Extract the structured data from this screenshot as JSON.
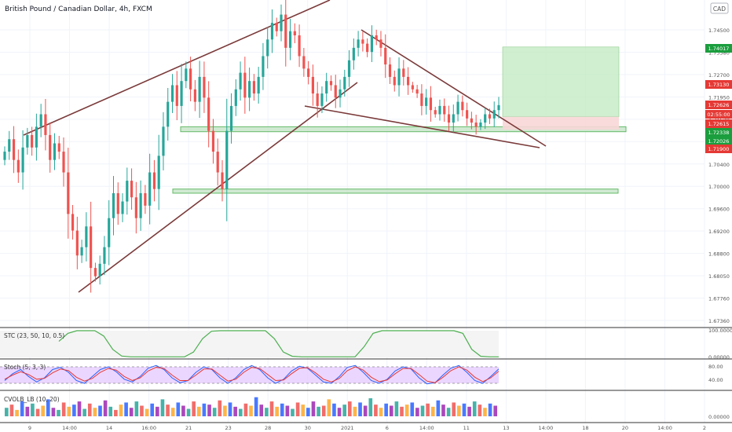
{
  "title": "British Pound / Canadian Dollar, 4h, FXCM",
  "currency_badge": "CAD",
  "price_axis_ticks": [
    "1.74500",
    "1.73580",
    "1.72700",
    "1.71950",
    "1.71520",
    "1.70800",
    "1.70400",
    "1.70000",
    "1.69600",
    "1.69200",
    "1.68800",
    "1.68050",
    "1.67760",
    "1.67360"
  ],
  "time_axis_ticks": [
    "9",
    "14:00",
    "14",
    "16:00",
    "21",
    "23",
    "28",
    "30",
    "2021",
    "6",
    "14:00",
    "11",
    "13",
    "14:00",
    "18",
    "20",
    "14:00",
    "2"
  ],
  "price_labels": [
    {
      "value": "1.74017",
      "color": "#1b9e3e"
    },
    {
      "value": "1.73130",
      "color": "#e53935"
    },
    {
      "value": "1.72626",
      "color": "#e53935"
    },
    {
      "value": "02:55:00",
      "color": "#e53935"
    },
    {
      "value": "1.72615",
      "color": "#e53935"
    },
    {
      "value": "1.72338",
      "color": "#1b9e3e"
    },
    {
      "value": "1.72026",
      "color": "#1b9e3e"
    },
    {
      "value": "1.71900",
      "color": "#e53935"
    }
  ],
  "stc_panel": {
    "label": "STC (23, 50, 10, 0.5)",
    "axis_ticks": [
      "100.00000",
      "0.00000"
    ]
  },
  "stoch_panel": {
    "label": "Stoch (5, 3, 3)",
    "axis_ticks": [
      "80.00",
      "40.00"
    ]
  },
  "cvol_panel": {
    "label": "CVOLB_LB (10, 20)",
    "axis_ticks": [
      "0.00000"
    ]
  },
  "colors": {
    "up": "#26a69a",
    "down": "#ef5350",
    "trendline": "#7b3a3a",
    "zone_fill": "#c8e6c9",
    "zone_stroke": "#4caf50",
    "long_target": "#c8ecc8",
    "long_stop": "#f8d7d7",
    "stoch_band": "#e6ccff",
    "stc_line": "#4caf50",
    "stc_line_down": "#e53935",
    "stoch_k": "#2962ff",
    "stoch_d": "#e53935"
  },
  "chart_data": [
    {
      "type": "candlestick",
      "title": "British Pound / Canadian Dollar, 4h, FXCM",
      "ylim": [
        1.6736,
        1.75
      ],
      "x_start_label": "9",
      "x_end_label": "2",
      "closes": [
        1.715,
        1.718,
        1.713,
        1.71,
        1.716,
        1.719,
        1.716,
        1.721,
        1.724,
        1.719,
        1.713,
        1.717,
        1.715,
        1.71,
        1.7,
        1.696,
        1.69,
        1.692,
        1.697,
        1.687,
        1.685,
        1.688,
        1.692,
        1.699,
        1.705,
        1.7,
        1.703,
        1.708,
        1.704,
        1.699,
        1.705,
        1.702,
        1.71,
        1.706,
        1.714,
        1.721,
        1.727,
        1.731,
        1.726,
        1.732,
        1.735,
        1.73,
        1.727,
        1.733,
        1.728,
        1.72,
        1.715,
        1.71,
        1.706,
        1.72,
        1.726,
        1.73,
        1.734,
        1.728,
        1.732,
        1.729,
        1.733,
        1.738,
        1.742,
        1.746,
        1.744,
        1.748,
        1.74,
        1.744,
        1.743,
        1.738,
        1.735,
        1.733,
        1.729,
        1.726,
        1.729,
        1.732,
        1.731,
        1.728,
        1.73,
        1.733,
        1.737,
        1.74,
        1.742,
        1.741,
        1.739,
        1.743,
        1.742,
        1.74,
        1.736,
        1.733,
        1.731,
        1.735,
        1.733,
        1.731,
        1.73,
        1.729,
        1.726,
        1.728,
        1.725,
        1.724,
        1.726,
        1.724,
        1.722,
        1.724,
        1.727,
        1.725,
        1.723,
        1.722,
        1.721,
        1.722,
        1.724,
        1.723,
        1.725,
        1.7262
      ],
      "horizontal_zones": [
        [
          1.7198,
          1.721
        ],
        [
          1.705,
          1.706
        ]
      ],
      "position": {
        "entry": 1.7234,
        "target": 1.7402,
        "stop": 1.7203
      }
    },
    {
      "type": "line",
      "title": "STC (23, 50, 10, 0.5)",
      "ylim": [
        0,
        100
      ],
      "series": [
        {
          "values": [
            60,
            90,
            100,
            100,
            100,
            80,
            30,
            5,
            2,
            2,
            2,
            2,
            2,
            2,
            2,
            20,
            70,
            98,
            100,
            100,
            100,
            100,
            100,
            100,
            70,
            20,
            4,
            2,
            2,
            2,
            2,
            2,
            2,
            2,
            40,
            90,
            100,
            100,
            100,
            100,
            100,
            100,
            100,
            100,
            100,
            90,
            30,
            4,
            2,
            2
          ]
        }
      ]
    },
    {
      "type": "line",
      "title": "Stoch (5, 3, 3)",
      "ylim": [
        0,
        100
      ],
      "series": [
        {
          "values": [
            30,
            55,
            70,
            45,
            25,
            40,
            70,
            78,
            60,
            30,
            20,
            45,
            70,
            80,
            62,
            35,
            25,
            45,
            75,
            85,
            70,
            40,
            22,
            30,
            60,
            80,
            70,
            40,
            20,
            40,
            70,
            85,
            70,
            40,
            20,
            35,
            65,
            82,
            75,
            50,
            25,
            20,
            45,
            78,
            85,
            60,
            30,
            20,
            35,
            65,
            80,
            72,
            40,
            18,
            22,
            50,
            75,
            85,
            60,
            30,
            20,
            45,
            72
          ]
        },
        {
          "values": [
            35,
            50,
            62,
            52,
            35,
            38,
            58,
            72,
            66,
            42,
            28,
            38,
            60,
            74,
            68,
            45,
            30,
            40,
            65,
            78,
            74,
            50,
            30,
            30,
            50,
            72,
            72,
            50,
            28,
            35,
            60,
            78,
            74,
            52,
            30,
            32,
            55,
            75,
            77,
            58,
            35,
            25,
            38,
            66,
            80,
            68,
            42,
            26,
            32,
            55,
            74,
            74,
            52,
            28,
            22,
            42,
            66,
            80,
            68,
            42,
            26,
            40,
            64
          ]
        }
      ]
    },
    {
      "type": "bar",
      "title": "CVOLB_LB (10, 20)",
      "ylim": [
        0,
        100
      ],
      "values": [
        40,
        55,
        30,
        70,
        45,
        60,
        35,
        50,
        80,
        40,
        30,
        65,
        45,
        55,
        70,
        35,
        60,
        40,
        50,
        75,
        45,
        30,
        55,
        65,
        40,
        70,
        50,
        35,
        60,
        45,
        80,
        55,
        40,
        65,
        50,
        35,
        70,
        45,
        60,
        55,
        40,
        75,
        50,
        65,
        45,
        35,
        60,
        50,
        90,
        55,
        40,
        70,
        45,
        60,
        50,
        35,
        65,
        55,
        40,
        70,
        45,
        50,
        80,
        60,
        40,
        55,
        70,
        45,
        65,
        50,
        85,
        55,
        40,
        60,
        50,
        70,
        45,
        55,
        65,
        40,
        50,
        60,
        45,
        75,
        55,
        40,
        65,
        50,
        60,
        45,
        70,
        55,
        40,
        60,
        50
      ]
    }
  ]
}
